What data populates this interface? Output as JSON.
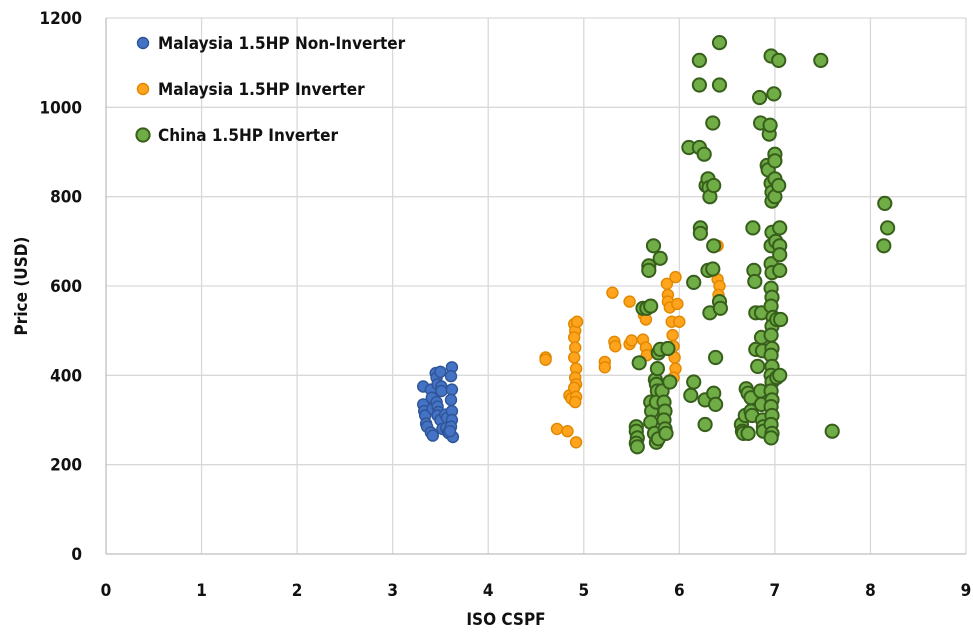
{
  "chart_data": {
    "type": "scatter",
    "xlabel": "ISO CSPF",
    "ylabel": "Price (USD)",
    "xlim": [
      0,
      9
    ],
    "ylim": [
      0,
      1200
    ],
    "x_ticks": [
      "0",
      "1",
      "2",
      "3",
      "4",
      "5",
      "6",
      "7",
      "8",
      "9"
    ],
    "y_ticks": [
      "0",
      "200",
      "400",
      "600",
      "800",
      "1000",
      "1200"
    ],
    "grid": true,
    "legend_position": "top-left",
    "series": [
      {
        "name": "Malaysia 1.5HP Non-Inverter",
        "color": "#4472c4",
        "stroke": "#2f5597",
        "points": [
          [
            3.32,
            375
          ],
          [
            3.32,
            335
          ],
          [
            3.33,
            320
          ],
          [
            3.34,
            310
          ],
          [
            3.35,
            292
          ],
          [
            3.36,
            285
          ],
          [
            3.4,
            368
          ],
          [
            3.41,
            350
          ],
          [
            3.42,
            325
          ],
          [
            3.4,
            272
          ],
          [
            3.42,
            265
          ],
          [
            3.45,
            405
          ],
          [
            3.46,
            395
          ],
          [
            3.47,
            380
          ],
          [
            3.46,
            340
          ],
          [
            3.47,
            330
          ],
          [
            3.48,
            318
          ],
          [
            3.47,
            310
          ],
          [
            3.5,
            408
          ],
          [
            3.51,
            375
          ],
          [
            3.51,
            365
          ],
          [
            3.5,
            300
          ],
          [
            3.52,
            280
          ],
          [
            3.55,
            312
          ],
          [
            3.57,
            305
          ],
          [
            3.56,
            282
          ],
          [
            3.58,
            272
          ],
          [
            3.59,
            270
          ],
          [
            3.62,
            418
          ],
          [
            3.61,
            398
          ],
          [
            3.62,
            368
          ],
          [
            3.61,
            345
          ],
          [
            3.62,
            320
          ],
          [
            3.62,
            300
          ],
          [
            3.61,
            285
          ],
          [
            3.63,
            262
          ],
          [
            3.6,
            275
          ]
        ]
      },
      {
        "name": "Malaysia 1.5HP Inverter",
        "color": "#ffa41c",
        "stroke": "#e08700",
        "points": [
          [
            4.6,
            440
          ],
          [
            4.6,
            435
          ],
          [
            4.72,
            280
          ],
          [
            4.83,
            275
          ],
          [
            4.85,
            355
          ],
          [
            4.87,
            348
          ],
          [
            4.9,
            515
          ],
          [
            4.91,
            500
          ],
          [
            4.9,
            485
          ],
          [
            4.91,
            462
          ],
          [
            4.9,
            440
          ],
          [
            4.92,
            415
          ],
          [
            4.91,
            395
          ],
          [
            4.92,
            380
          ],
          [
            4.9,
            372
          ],
          [
            4.92,
            352
          ],
          [
            4.91,
            340
          ],
          [
            4.92,
            250
          ],
          [
            4.93,
            520
          ],
          [
            5.22,
            430
          ],
          [
            5.22,
            418
          ],
          [
            5.3,
            585
          ],
          [
            5.32,
            475
          ],
          [
            5.33,
            465
          ],
          [
            5.48,
            565
          ],
          [
            5.48,
            470
          ],
          [
            5.5,
            478
          ],
          [
            5.62,
            550
          ],
          [
            5.63,
            535
          ],
          [
            5.65,
            525
          ],
          [
            5.62,
            480
          ],
          [
            5.65,
            462
          ],
          [
            5.66,
            445
          ],
          [
            5.8,
            330
          ],
          [
            5.83,
            305
          ],
          [
            5.85,
            380
          ],
          [
            5.87,
            605
          ],
          [
            5.88,
            580
          ],
          [
            5.88,
            565
          ],
          [
            5.9,
            552
          ],
          [
            5.92,
            520
          ],
          [
            5.93,
            490
          ],
          [
            5.94,
            465
          ],
          [
            5.95,
            440
          ],
          [
            5.96,
            415
          ],
          [
            5.94,
            395
          ],
          [
            5.96,
            620
          ],
          [
            5.98,
            560
          ],
          [
            6.0,
            520
          ],
          [
            6.4,
            690
          ],
          [
            6.4,
            615
          ],
          [
            6.42,
            600
          ],
          [
            6.41,
            580
          ]
        ]
      },
      {
        "name": "China 1.5HP Inverter",
        "color": "#70ad47",
        "stroke": "#375f1b",
        "points": [
          [
            5.55,
            285
          ],
          [
            5.55,
            275
          ],
          [
            5.56,
            260
          ],
          [
            5.55,
            248
          ],
          [
            5.56,
            240
          ],
          [
            5.58,
            428
          ],
          [
            5.62,
            550
          ],
          [
            5.66,
            550
          ],
          [
            5.68,
            645
          ],
          [
            5.68,
            635
          ],
          [
            5.7,
            555
          ],
          [
            5.7,
            340
          ],
          [
            5.71,
            320
          ],
          [
            5.7,
            295
          ],
          [
            5.73,
            690
          ],
          [
            5.75,
            390
          ],
          [
            5.76,
            380
          ],
          [
            5.77,
            415
          ],
          [
            5.78,
            450
          ],
          [
            5.77,
            365
          ],
          [
            5.76,
            340
          ],
          [
            5.74,
            270
          ],
          [
            5.76,
            250
          ],
          [
            5.78,
            258
          ],
          [
            5.8,
            662
          ],
          [
            5.8,
            458
          ],
          [
            5.82,
            365
          ],
          [
            5.84,
            340
          ],
          [
            5.85,
            320
          ],
          [
            5.84,
            300
          ],
          [
            5.85,
            280
          ],
          [
            5.88,
            460
          ],
          [
            5.9,
            385
          ],
          [
            5.86,
            270
          ],
          [
            6.1,
            910
          ],
          [
            6.12,
            355
          ],
          [
            6.15,
            385
          ],
          [
            6.15,
            608
          ],
          [
            6.21,
            1105
          ],
          [
            6.21,
            1050
          ],
          [
            6.21,
            910
          ],
          [
            6.22,
            730
          ],
          [
            6.22,
            718
          ],
          [
            6.26,
            895
          ],
          [
            6.27,
            345
          ],
          [
            6.27,
            290
          ],
          [
            6.28,
            825
          ],
          [
            6.3,
            840
          ],
          [
            6.31,
            820
          ],
          [
            6.32,
            800
          ],
          [
            6.3,
            635
          ],
          [
            6.32,
            540
          ],
          [
            6.35,
            965
          ],
          [
            6.36,
            825
          ],
          [
            6.36,
            690
          ],
          [
            6.35,
            638
          ],
          [
            6.36,
            360
          ],
          [
            6.38,
            335
          ],
          [
            6.38,
            440
          ],
          [
            6.42,
            1145
          ],
          [
            6.42,
            1050
          ],
          [
            6.42,
            565
          ],
          [
            6.43,
            550
          ],
          [
            6.65,
            290
          ],
          [
            6.66,
            275
          ],
          [
            6.67,
            270
          ],
          [
            6.69,
            310
          ],
          [
            6.7,
            370
          ],
          [
            6.72,
            360
          ],
          [
            6.72,
            270
          ],
          [
            6.75,
            350
          ],
          [
            6.75,
            320
          ],
          [
            6.76,
            310
          ],
          [
            6.77,
            730
          ],
          [
            6.78,
            635
          ],
          [
            6.79,
            610
          ],
          [
            6.8,
            540
          ],
          [
            6.8,
            458
          ],
          [
            6.82,
            420
          ],
          [
            6.84,
            1022
          ],
          [
            6.85,
            965
          ],
          [
            6.86,
            540
          ],
          [
            6.86,
            485
          ],
          [
            6.87,
            455
          ],
          [
            6.85,
            365
          ],
          [
            6.86,
            335
          ],
          [
            6.87,
            300
          ],
          [
            6.88,
            285
          ],
          [
            6.88,
            275
          ],
          [
            6.92,
            870
          ],
          [
            6.93,
            860
          ],
          [
            6.94,
            940
          ],
          [
            6.95,
            960
          ],
          [
            6.96,
            1115
          ],
          [
            6.96,
            830
          ],
          [
            6.97,
            810
          ],
          [
            6.97,
            790
          ],
          [
            6.97,
            720
          ],
          [
            6.96,
            690
          ],
          [
            6.96,
            650
          ],
          [
            6.97,
            630
          ],
          [
            6.96,
            595
          ],
          [
            6.97,
            575
          ],
          [
            6.96,
            555
          ],
          [
            6.98,
            530
          ],
          [
            6.97,
            510
          ],
          [
            6.96,
            490
          ],
          [
            6.97,
            460
          ],
          [
            6.96,
            445
          ],
          [
            6.97,
            420
          ],
          [
            6.96,
            400
          ],
          [
            6.97,
            385
          ],
          [
            6.96,
            365
          ],
          [
            6.97,
            345
          ],
          [
            6.96,
            330
          ],
          [
            6.97,
            310
          ],
          [
            6.96,
            290
          ],
          [
            6.97,
            270
          ],
          [
            6.96,
            260
          ],
          [
            6.99,
            1030
          ],
          [
            7.0,
            895
          ],
          [
            7.0,
            880
          ],
          [
            7.0,
            840
          ],
          [
            7.0,
            800
          ],
          [
            7.01,
            700
          ],
          [
            7.02,
            525
          ],
          [
            7.02,
            395
          ],
          [
            7.04,
            1105
          ],
          [
            7.04,
            825
          ],
          [
            7.05,
            730
          ],
          [
            7.05,
            690
          ],
          [
            7.05,
            670
          ],
          [
            7.05,
            635
          ],
          [
            7.06,
            525
          ],
          [
            7.05,
            400
          ],
          [
            7.48,
            1105
          ],
          [
            7.6,
            275
          ],
          [
            8.15,
            785
          ],
          [
            8.14,
            690
          ],
          [
            8.18,
            730
          ]
        ]
      }
    ]
  }
}
